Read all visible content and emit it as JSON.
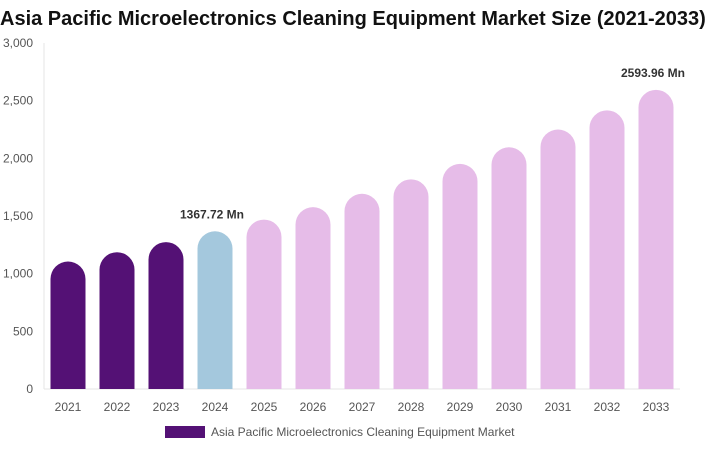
{
  "chart_data": {
    "type": "bar",
    "title": "Asia Pacific Microelectronics Cleaning Equipment Market Size (2021-2033)",
    "categories": [
      "2021",
      "2022",
      "2023",
      "2024",
      "2025",
      "2026",
      "2027",
      "2028",
      "2029",
      "2030",
      "2031",
      "2032",
      "2033"
    ],
    "series": [
      {
        "name": "Asia Pacific Microelectronics Cleaning Equipment Market",
        "values": [
          1105,
          1186,
          1274,
          1367.72,
          1469,
          1577,
          1693,
          1818,
          1952,
          2096,
          2250,
          2416,
          2593.96
        ]
      }
    ],
    "data_labels": [
      {
        "category": "2024",
        "text": "1367.72 Mn"
      },
      {
        "category": "2033",
        "text": "2593.96 Mn"
      }
    ],
    "ylim": [
      0,
      3000
    ],
    "yticks": [
      0,
      500,
      1000,
      1500,
      2000,
      2500,
      3000
    ],
    "ytick_labels": [
      "0",
      "500",
      "1,000",
      "1,500",
      "2,000",
      "2,500",
      "3,000"
    ],
    "grid": false,
    "legend": "bottom",
    "colors": {
      "historical": "#541175",
      "base_year": "#a4c8dd",
      "forecast": "#e6bce8"
    },
    "bar_color_by_category": [
      "historical",
      "historical",
      "historical",
      "base_year",
      "forecast",
      "forecast",
      "forecast",
      "forecast",
      "forecast",
      "forecast",
      "forecast",
      "forecast",
      "forecast"
    ]
  }
}
